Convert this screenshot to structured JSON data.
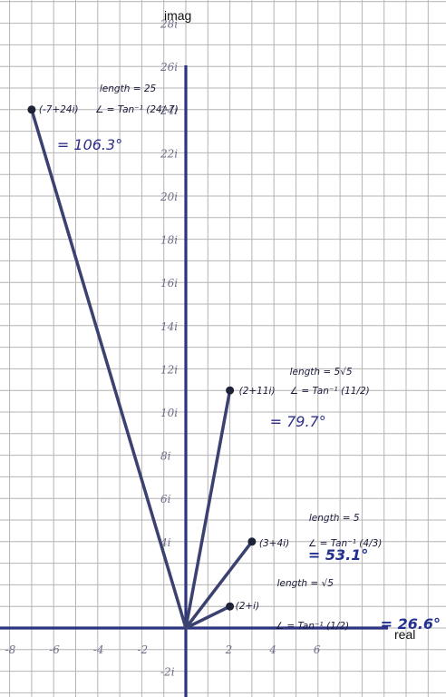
{
  "chart_data": {
    "type": "line",
    "xlabel": "real",
    "ylabel": "imag",
    "xlim": [
      -9,
      9.7
    ],
    "ylim": [
      -3.2,
      28.8
    ],
    "grid": true,
    "x_ticks": [
      "-8",
      "-6",
      "-4",
      "-2",
      "2",
      "4",
      "6"
    ],
    "y_ticks": [
      "-2i",
      "4i",
      "6i",
      "8i",
      "10i",
      "12i",
      "14i",
      "16i",
      "18i",
      "20i",
      "22i",
      "24i",
      "26i",
      "28i"
    ],
    "series": [
      {
        "label": "(-7+24i)",
        "x": [
          0,
          -7
        ],
        "y": [
          0,
          24
        ]
      },
      {
        "label": "(2+11i)",
        "x": [
          0,
          2
        ],
        "y": [
          0,
          11
        ]
      },
      {
        "label": "(3+4i)",
        "x": [
          0,
          3
        ],
        "y": [
          0,
          4
        ]
      },
      {
        "label": "(2+i)",
        "x": [
          0,
          2
        ],
        "y": [
          0,
          1
        ]
      }
    ],
    "annotations": [
      {
        "length": "length = 25",
        "formula": "∠ = Tan⁻¹ (24/-7)",
        "angle": "= 106.3°"
      },
      {
        "length": "length = 5√5",
        "formula": "∠ = Tan⁻¹ (11/2)",
        "angle": "= 79.7°"
      },
      {
        "length": "length = 5",
        "formula": "∠ = Tan⁻¹ (4/3)",
        "angle": "= 53.1°"
      },
      {
        "length": "length = √5",
        "formula": "∠ = Tan⁻¹ (1/2)",
        "angle": "= 26.6°"
      }
    ],
    "colors": {
      "line": "#3b4270",
      "grid": "#b4b4b4",
      "axis": "#2d3580"
    }
  }
}
